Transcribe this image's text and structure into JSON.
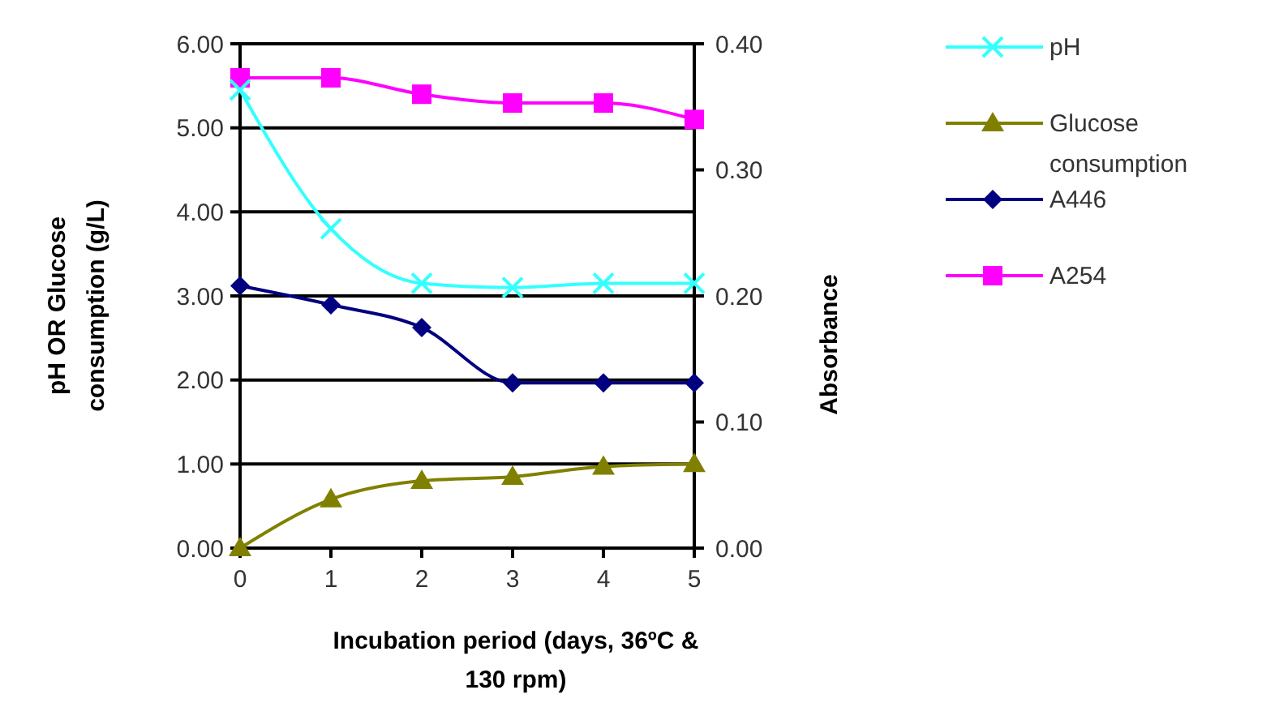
{
  "chart_data": {
    "type": "line",
    "xlabel": "Incubation period (days, 36ºC & 130 rpm)",
    "ylabel": "pH OR Glucose consumption (g/L)",
    "y2label": "Absorbance",
    "x": [
      0,
      1,
      2,
      3,
      4,
      5
    ],
    "xlim": [
      0,
      5
    ],
    "xticks": [
      0,
      1,
      2,
      3,
      4,
      5
    ],
    "ylim": [
      0,
      6
    ],
    "yticks": [
      {
        "value": 0,
        "label": "0.00"
      },
      {
        "value": 1,
        "label": "1.00"
      },
      {
        "value": 2,
        "label": "2.00"
      },
      {
        "value": 3,
        "label": "3.00"
      },
      {
        "value": 4,
        "label": "4.00"
      },
      {
        "value": 5,
        "label": "5.00"
      },
      {
        "value": 6,
        "label": "6.00"
      }
    ],
    "y2lim": [
      0,
      0.4
    ],
    "y2ticks": [
      {
        "value": 0,
        "label": "0.00"
      },
      {
        "value": 0.1,
        "label": "0.10"
      },
      {
        "value": 0.2,
        "label": "0.20"
      },
      {
        "value": 0.3,
        "label": "0.30"
      },
      {
        "value": 0.4,
        "label": "0.40"
      }
    ],
    "grid": "y",
    "legend": "right",
    "line_style": "solid",
    "series": [
      {
        "name": "pH",
        "color": "#33ffff",
        "marker": "cross",
        "values": [
          5.45,
          3.8,
          3.15,
          3.1,
          3.15,
          3.15
        ]
      },
      {
        "name": "Glucose consumption",
        "color": "#808000",
        "marker": "triangle",
        "values": [
          0,
          0.58,
          0.8,
          0.85,
          0.97,
          1.0
        ]
      },
      {
        "name": "A446",
        "color": "#000080",
        "marker": "diamond",
        "axis": "y2",
        "values": [
          0.208,
          0.193,
          0.175,
          0.131,
          0.131,
          0.131
        ]
      },
      {
        "name": "A254",
        "color": "#ff00ff",
        "marker": "square",
        "axis": "y2",
        "values": [
          0.373,
          0.373,
          0.36,
          0.353,
          0.353,
          0.34
        ]
      }
    ]
  }
}
